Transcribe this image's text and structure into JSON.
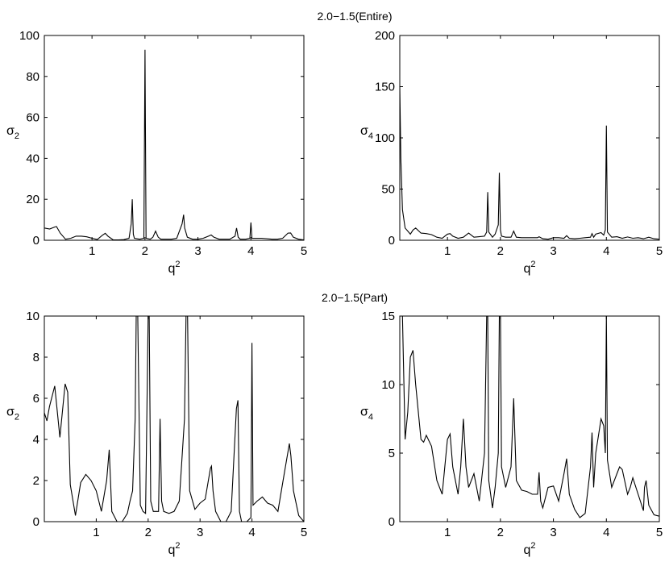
{
  "section_titles": [
    "2.0−1.5(Entire)",
    "2.0−1.5(Part)"
  ],
  "chart_data": [
    {
      "type": "line",
      "panel": "top-left",
      "xlabel_base": "q",
      "xlabel_sup": "2",
      "ylabel_base": "σ",
      "ylabel_sub": "2",
      "xlim": [
        0.1,
        5
      ],
      "ylim": [
        0,
        100
      ],
      "xticks": [
        1,
        2,
        3,
        4,
        5
      ],
      "yticks": [
        0,
        20,
        40,
        60,
        80,
        100
      ],
      "grid": false,
      "x": [
        0.1,
        0.2,
        0.3,
        0.33,
        0.4,
        0.5,
        0.6,
        0.7,
        0.8,
        0.9,
        1.0,
        1.1,
        1.2,
        1.25,
        1.3,
        1.4,
        1.5,
        1.6,
        1.7,
        1.74,
        1.76,
        1.78,
        1.8,
        1.9,
        1.98,
        2.0,
        2.02,
        2.1,
        2.15,
        2.2,
        2.25,
        2.3,
        2.4,
        2.5,
        2.6,
        2.7,
        2.73,
        2.75,
        2.8,
        2.9,
        3.0,
        3.1,
        3.2,
        3.25,
        3.3,
        3.4,
        3.5,
        3.6,
        3.7,
        3.73,
        3.76,
        3.8,
        3.9,
        3.98,
        4.0,
        4.02,
        4.1,
        4.2,
        4.3,
        4.4,
        4.5,
        4.6,
        4.7,
        4.75,
        4.8,
        4.9,
        5.0
      ],
      "y": [
        6,
        5.5,
        6.5,
        6.7,
        3.5,
        0.5,
        1,
        2,
        2,
        1.7,
        1,
        0.4,
        2.5,
        3.4,
        2,
        0.2,
        0.2,
        0.3,
        1,
        8,
        20,
        3,
        1,
        0.5,
        1,
        93,
        1,
        0.5,
        1.5,
        4.5,
        1.5,
        0.5,
        0.5,
        0.5,
        1,
        8,
        12.5,
        6,
        1.5,
        0.5,
        0.5,
        1,
        2,
        2.6,
        1.5,
        0.5,
        0.5,
        0.5,
        2,
        6,
        1.5,
        0.5,
        0.5,
        1,
        8.7,
        1,
        1,
        1,
        0.8,
        0.5,
        0.5,
        1,
        3.5,
        3.6,
        1.5,
        0.5,
        0.2
      ]
    },
    {
      "type": "line",
      "panel": "top-right",
      "xlabel_base": "q",
      "xlabel_sup": "2",
      "ylabel_base": "σ",
      "ylabel_sub": "4",
      "xlim": [
        0.1,
        5
      ],
      "ylim": [
        0,
        200
      ],
      "xticks": [
        1,
        2,
        3,
        4,
        5
      ],
      "yticks": [
        0,
        50,
        100,
        150,
        200
      ],
      "grid": false,
      "x": [
        0.1,
        0.12,
        0.15,
        0.2,
        0.3,
        0.35,
        0.4,
        0.5,
        0.6,
        0.7,
        0.8,
        0.9,
        1.0,
        1.05,
        1.1,
        1.2,
        1.3,
        1.4,
        1.5,
        1.6,
        1.7,
        1.74,
        1.76,
        1.78,
        1.85,
        1.9,
        1.96,
        1.98,
        2.0,
        2.02,
        2.1,
        2.2,
        2.25,
        2.3,
        2.4,
        2.5,
        2.6,
        2.7,
        2.73,
        2.8,
        2.9,
        3.0,
        3.1,
        3.2,
        3.25,
        3.3,
        3.4,
        3.5,
        3.6,
        3.7,
        3.73,
        3.76,
        3.8,
        3.9,
        3.95,
        3.98,
        4.0,
        4.02,
        4.1,
        4.2,
        4.3,
        4.4,
        4.5,
        4.6,
        4.7,
        4.8,
        4.9,
        5.0
      ],
      "y": [
        150,
        80,
        30,
        12,
        6,
        10,
        12,
        7,
        6.5,
        5.5,
        3,
        2,
        6,
        6.5,
        4,
        2,
        3,
        7,
        3,
        3.5,
        4,
        8,
        47,
        8,
        3,
        6,
        15,
        66,
        10,
        4,
        3,
        3,
        9,
        3,
        2.5,
        2.5,
        2.5,
        2.5,
        3.5,
        1.5,
        1,
        2.5,
        2.5,
        2,
        4.5,
        2,
        1.5,
        2,
        2.5,
        3,
        6.5,
        3,
        6,
        7.5,
        5,
        10,
        112,
        8,
        3,
        3.5,
        2,
        3.2,
        2,
        2.5,
        1.5,
        3,
        1.5,
        1
      ]
    },
    {
      "type": "line",
      "panel": "bottom-left",
      "xlabel_base": "q",
      "xlabel_sup": "2",
      "ylabel_base": "σ",
      "ylabel_sub": "2",
      "xlim": [
        0,
        5
      ],
      "ylim": [
        0,
        10
      ],
      "xticks": [
        1,
        2,
        3,
        4,
        5
      ],
      "yticks": [
        0,
        2,
        4,
        6,
        8,
        10
      ],
      "grid": false,
      "x": [
        0,
        0.05,
        0.1,
        0.2,
        0.3,
        0.4,
        0.45,
        0.5,
        0.6,
        0.7,
        0.8,
        0.9,
        1.0,
        1.1,
        1.2,
        1.25,
        1.3,
        1.4,
        1.5,
        1.6,
        1.65,
        1.7,
        1.75,
        1.77,
        1.8,
        1.85,
        1.9,
        1.95,
        2.0,
        2.02,
        2.05,
        2.1,
        2.2,
        2.23,
        2.26,
        2.3,
        2.4,
        2.5,
        2.6,
        2.7,
        2.73,
        2.76,
        2.8,
        2.9,
        3.0,
        3.1,
        3.2,
        3.22,
        3.25,
        3.3,
        3.4,
        3.5,
        3.6,
        3.7,
        3.73,
        3.76,
        3.8,
        3.9,
        3.98,
        4.0,
        4.02,
        4.1,
        4.2,
        4.3,
        4.4,
        4.5,
        4.6,
        4.7,
        4.72,
        4.75,
        4.8,
        4.9,
        5.0
      ],
      "y": [
        5.3,
        4.9,
        5.6,
        6.6,
        4.1,
        6.7,
        6.3,
        1.8,
        0.3,
        1.9,
        2.3,
        2.0,
        1.5,
        0.5,
        2.0,
        3.5,
        0.5,
        0,
        0,
        0.4,
        1.0,
        1.5,
        5,
        10,
        10,
        0.8,
        0.5,
        0.4,
        10,
        10,
        1,
        0.5,
        0.5,
        5.0,
        1.0,
        0.5,
        0.4,
        0.5,
        1.0,
        5,
        10,
        10,
        1.5,
        0.6,
        0.9,
        1.1,
        2.6,
        2.7,
        1.5,
        0.5,
        0,
        0,
        0.5,
        5.5,
        5.9,
        0.5,
        0,
        0,
        0.2,
        8.7,
        0.8,
        1.0,
        1.2,
        0.9,
        0.8,
        0.5,
        2.0,
        3.5,
        3.8,
        3.2,
        1.5,
        0.3,
        0
      ]
    },
    {
      "type": "line",
      "panel": "bottom-right",
      "xlabel_base": "q",
      "xlabel_sup": "2",
      "ylabel_base": "σ",
      "ylabel_sub": "4",
      "xlim": [
        0.1,
        5
      ],
      "ylim": [
        0,
        15
      ],
      "xticks": [
        1,
        2,
        3,
        4,
        5
      ],
      "yticks": [
        0,
        5,
        10,
        15
      ],
      "grid": false,
      "x": [
        0.1,
        0.15,
        0.2,
        0.25,
        0.3,
        0.35,
        0.4,
        0.5,
        0.55,
        0.6,
        0.7,
        0.8,
        0.9,
        1.0,
        1.05,
        1.1,
        1.2,
        1.25,
        1.3,
        1.35,
        1.4,
        1.5,
        1.6,
        1.7,
        1.74,
        1.76,
        1.78,
        1.85,
        1.9,
        1.96,
        1.98,
        2.0,
        2.02,
        2.1,
        2.2,
        2.25,
        2.3,
        2.4,
        2.5,
        2.6,
        2.7,
        2.73,
        2.76,
        2.8,
        2.9,
        3.0,
        3.1,
        3.2,
        3.25,
        3.3,
        3.4,
        3.5,
        3.6,
        3.7,
        3.73,
        3.76,
        3.8,
        3.9,
        3.95,
        3.98,
        4.0,
        4.02,
        4.1,
        4.2,
        4.25,
        4.3,
        4.4,
        4.45,
        4.5,
        4.6,
        4.7,
        4.72,
        4.75,
        4.8,
        4.9,
        5.0
      ],
      "y": [
        15,
        15,
        6.0,
        8.0,
        12.0,
        12.5,
        10.0,
        6.0,
        5.8,
        6.3,
        5.5,
        3.0,
        2.0,
        6.0,
        6.4,
        4.0,
        2.0,
        4.0,
        7.5,
        4.0,
        2.5,
        3.5,
        1.5,
        5.0,
        15,
        15,
        3.0,
        1.0,
        2.5,
        5.0,
        15,
        15,
        4.0,
        2.5,
        4.0,
        9.0,
        3.0,
        2.3,
        2.2,
        2.0,
        2.0,
        3.6,
        1.5,
        1.0,
        2.5,
        2.6,
        1.5,
        3.5,
        4.6,
        2.0,
        0.9,
        0.3,
        0.6,
        4.0,
        6.5,
        2.5,
        5.0,
        7.5,
        7.0,
        5.0,
        15,
        4.5,
        2.5,
        3.5,
        4.0,
        3.8,
        2.0,
        2.5,
        3.2,
        2.0,
        0.8,
        2.5,
        3.0,
        1.2,
        0.5,
        0.4
      ]
    }
  ]
}
